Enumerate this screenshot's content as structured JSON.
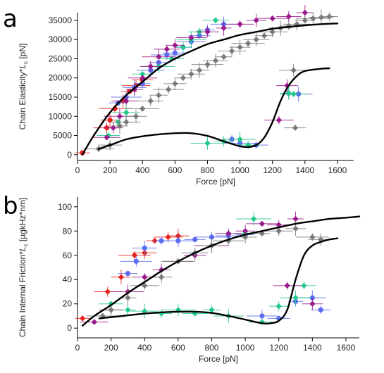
{
  "panels": [
    {
      "letter": "a"
    },
    {
      "letter": "b"
    }
  ],
  "colors": {
    "red": "#e8221c",
    "blue": "#5a6cf0",
    "green": "#22c98a",
    "magenta": "#9a1a8c",
    "gray": "#7a7a7a",
    "fit": "#000000"
  },
  "chart_data": [
    {
      "type": "scatter",
      "xlabel": "Force [pN]",
      "ylabel": "Chain Elasticity*L_c [pN]",
      "xlim": [
        0,
        1700
      ],
      "ylim": [
        -1500,
        37000
      ],
      "xticks": [
        "0",
        "200",
        "400",
        "600",
        "800",
        "1000",
        "1200",
        "1400",
        "1600"
      ],
      "yticks": [
        "0",
        "5000",
        "10000",
        "15000",
        "20000",
        "25000",
        "30000",
        "35000"
      ],
      "series": [
        {
          "color": "red",
          "marker": "circle",
          "x": [
            30,
            180,
            200,
            230,
            280,
            320,
            360,
            400
          ],
          "y": [
            500,
            7000,
            9000,
            12000,
            14000,
            16500,
            18000,
            19500
          ]
        },
        {
          "color": "blue",
          "marker": "circle",
          "x": [
            250,
            300,
            350,
            400,
            450,
            500,
            550,
            600,
            650,
            700,
            750,
            800,
            900,
            950,
            1000,
            1100,
            1300,
            1360
          ],
          "y": [
            13500,
            15000,
            17500,
            18500,
            22000,
            24000,
            26000,
            26500,
            28000,
            29500,
            31000,
            32500,
            34000,
            4000,
            3000,
            2500,
            16000,
            15800
          ]
        },
        {
          "color": "green",
          "marker": "diamond",
          "x": [
            190,
            250,
            300,
            400,
            500,
            580,
            650,
            700,
            750,
            800,
            850,
            900,
            1000,
            1050,
            1300,
            1330
          ],
          "y": [
            5000,
            8500,
            11000,
            21000,
            23000,
            25000,
            28000,
            30000,
            32000,
            3000,
            35000,
            3500,
            4000,
            2500,
            16000,
            15800
          ]
        },
        {
          "color": "magenta",
          "marker": "diamond",
          "x": [
            180,
            220,
            260,
            300,
            350,
            400,
            450,
            500,
            550,
            600,
            700,
            800,
            900,
            1000,
            1100,
            1200,
            1300,
            1400,
            1240,
            1290
          ],
          "y": [
            4500,
            7000,
            10000,
            14000,
            17000,
            20000,
            23000,
            25500,
            27500,
            28500,
            30500,
            32000,
            33000,
            34000,
            35000,
            35500,
            36000,
            37000,
            9000,
            18000
          ]
        },
        {
          "color": "gray",
          "marker": "diamond",
          "x": [
            130,
            200,
            260,
            300,
            360,
            400,
            450,
            500,
            560,
            600,
            650,
            700,
            750,
            800,
            850,
            900,
            950,
            1000,
            1050,
            1100,
            1150,
            1200,
            1250,
            1300,
            1350,
            1400,
            1450,
            1500,
            1550,
            1330,
            1340
          ],
          "y": [
            1500,
            2500,
            7500,
            8500,
            10000,
            12000,
            14000,
            15500,
            17000,
            18500,
            20000,
            21000,
            22000,
            23500,
            24500,
            25500,
            27000,
            28000,
            29000,
            30000,
            31000,
            32000,
            33000,
            33500,
            34000,
            35000,
            35500,
            35800,
            36000,
            22000,
            7000
          ]
        }
      ],
      "fits": [
        {
          "x": [
            30,
            100,
            200,
            300,
            400,
            500,
            600,
            700,
            800,
            900,
            1000,
            1100,
            1200,
            1300,
            1400,
            1500,
            1600
          ],
          "y": [
            0,
            5000,
            11000,
            15500,
            19000,
            22500,
            25000,
            27000,
            28800,
            30000,
            31200,
            32000,
            32800,
            33300,
            33700,
            34000,
            34200
          ]
        },
        {
          "x": [
            130,
            200,
            300,
            400,
            500,
            600,
            700,
            800,
            900,
            1000,
            1050,
            1100,
            1150,
            1200,
            1250,
            1300,
            1350,
            1400,
            1500,
            1550
          ],
          "y": [
            1500,
            2500,
            4000,
            4800,
            5300,
            5600,
            5600,
            4900,
            3500,
            2200,
            2000,
            2500,
            4500,
            8500,
            14000,
            18000,
            20500,
            21800,
            22400,
            22500
          ]
        }
      ]
    },
    {
      "type": "scatter",
      "xlabel": "Force [pN]",
      "ylabel": "Chain Internal Friction*L_c [µgkHz*nm]",
      "xlim": [
        0,
        1680
      ],
      "ylim": [
        -8,
        108
      ],
      "xticks": [
        "0",
        "200",
        "400",
        "600",
        "800",
        "1000",
        "1200",
        "1400",
        "1600"
      ],
      "yticks": [
        "0",
        "20",
        "40",
        "60",
        "80",
        "100"
      ],
      "series": [
        {
          "color": "red",
          "marker": "diamond",
          "x": [
            30,
            180,
            260,
            340,
            400,
            460,
            540,
            600
          ],
          "y": [
            8,
            30,
            42,
            60,
            62,
            72,
            75,
            76
          ]
        },
        {
          "color": "blue",
          "marker": "circle",
          "x": [
            300,
            350,
            400,
            500,
            600,
            700,
            800,
            900,
            1000,
            1100,
            1200,
            1300,
            1400,
            1450
          ],
          "y": [
            45,
            55,
            66,
            72,
            72,
            73,
            75,
            76,
            77,
            10,
            8,
            22,
            25,
            15
          ]
        },
        {
          "color": "green",
          "marker": "diamond",
          "x": [
            200,
            300,
            400,
            500,
            600,
            700,
            800,
            900,
            1000,
            1050,
            1100,
            1200,
            1300,
            1350
          ],
          "y": [
            20,
            15,
            14,
            12,
            15,
            12,
            15,
            10,
            78,
            90,
            5,
            18,
            25,
            35
          ]
        },
        {
          "color": "magenta",
          "marker": "diamond",
          "x": [
            100,
            200,
            300,
            400,
            500,
            600,
            700,
            800,
            900,
            1000,
            1100,
            1200,
            1300,
            1250,
            1400
          ],
          "y": [
            5,
            15,
            30,
            42,
            48,
            55,
            60,
            68,
            78,
            80,
            86,
            85,
            90,
            35,
            20
          ]
        },
        {
          "color": "gray",
          "marker": "diamond",
          "x": [
            150,
            200,
            300,
            400,
            500,
            600,
            700,
            800,
            900,
            1000,
            1100,
            1200,
            1300,
            1400,
            1450
          ],
          "y": [
            10,
            15,
            25,
            35,
            42,
            55,
            62,
            68,
            72,
            75,
            78,
            80,
            82,
            75,
            73
          ]
        }
      ],
      "fits": [
        {
          "x": [
            30,
            100,
            200,
            300,
            400,
            500,
            600,
            700,
            800,
            900,
            1000,
            1100,
            1200,
            1300,
            1400,
            1500,
            1600,
            1680
          ],
          "y": [
            2,
            10,
            19,
            29,
            38,
            47,
            55,
            62,
            68,
            73,
            77,
            80,
            83,
            86,
            88,
            90,
            91,
            92
          ]
        },
        {
          "x": [
            130,
            200,
            300,
            400,
            500,
            600,
            700,
            800,
            900,
            1000,
            1100,
            1150,
            1200,
            1250,
            1300,
            1350,
            1400,
            1450,
            1500,
            1550
          ],
          "y": [
            8,
            9,
            10.5,
            12,
            13,
            13.5,
            13.5,
            12.5,
            10,
            7,
            4,
            4,
            6,
            15,
            40,
            60,
            68,
            71,
            73,
            74
          ]
        }
      ]
    }
  ]
}
